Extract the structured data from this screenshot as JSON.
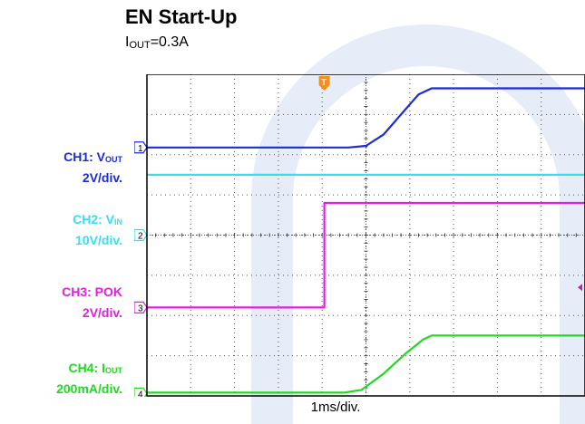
{
  "title": "EN Start-Up",
  "subtitle": {
    "var": "I",
    "sub": "OUT",
    "rest": "=0.3A"
  },
  "channels": [
    {
      "id": "1",
      "name": "CH1: V",
      "sub": "OUT",
      "scale": "2V/div.",
      "color": "#1a2bd8",
      "marker": "1"
    },
    {
      "id": "2",
      "name": "CH2: V",
      "sub": "IN",
      "scale": "10V/div.",
      "color": "#33e0f0",
      "marker": "2"
    },
    {
      "id": "3",
      "name": "CH3: POK",
      "sub": "",
      "scale": "2V/div.",
      "color": "#e020e0",
      "marker": "3"
    },
    {
      "id": "4",
      "name": "CH4: I",
      "sub": "OUT",
      "scale": "200mA/div.",
      "color": "#22d822",
      "marker": "4"
    }
  ],
  "trigger_marker": "T",
  "chart_data": {
    "type": "line",
    "xlabel": "1ms/div.",
    "x_unit": "div",
    "y_unit": "div",
    "xlim": [
      0,
      10
    ],
    "ylim": [
      0,
      8
    ],
    "grid": true,
    "series": [
      {
        "name": "CH1: VOUT",
        "color": "#1a2bd8",
        "x": [
          0,
          4.6,
          5.0,
          5.4,
          5.8,
          6.2,
          6.5,
          10
        ],
        "y": [
          6.18,
          6.18,
          6.22,
          6.5,
          7.0,
          7.5,
          7.65,
          7.65
        ]
      },
      {
        "name": "CH2: VIN",
        "color": "#33e0f0",
        "x": [
          0,
          10
        ],
        "y": [
          5.5,
          5.5
        ]
      },
      {
        "name": "CH3: POK",
        "color": "#e020e0",
        "x": [
          0,
          4.05,
          4.05,
          10
        ],
        "y": [
          2.2,
          2.2,
          4.8,
          4.8
        ]
      },
      {
        "name": "CH4: IOUT",
        "color": "#22d822",
        "x": [
          0,
          4.5,
          4.9,
          5.4,
          5.9,
          6.3,
          6.5,
          10
        ],
        "y": [
          0.08,
          0.08,
          0.15,
          0.55,
          1.05,
          1.4,
          1.5,
          1.5
        ]
      }
    ]
  }
}
